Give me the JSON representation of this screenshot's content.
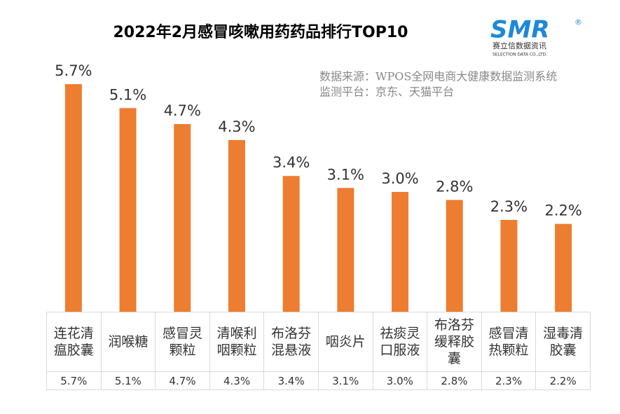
{
  "chart_data": {
    "type": "bar",
    "title": "2022年2月感冒咳嗽用药药品排行TOP10",
    "categories": [
      "连花清瘟胶囊",
      "润喉糖",
      "感冒灵颗粒",
      "清喉利咽颗粒",
      "布洛芬混悬液",
      "咽炎片",
      "祛痰灵口服液",
      "布洛芬缓释胶囊",
      "感冒清热颗粒",
      "湿毒清胶囊"
    ],
    "values": [
      5.7,
      5.1,
      4.7,
      4.3,
      3.4,
      3.1,
      3.0,
      2.8,
      2.3,
      2.2
    ],
    "value_labels": [
      "5.7%",
      "5.1%",
      "4.7%",
      "4.3%",
      "3.4%",
      "3.1%",
      "3.0%",
      "2.8%",
      "2.3%",
      "2.2%"
    ],
    "color": "#ed7d31",
    "source": [
      "数据来源：WPOS全网电商大健康数据监测系统",
      "监测平台：京东、天猫平台"
    ],
    "logo": {
      "mark": "SMR",
      "registered": "®",
      "name": "赛立信数据资讯",
      "subtitle": "SELECTION DATA CO.,LTD."
    }
  }
}
